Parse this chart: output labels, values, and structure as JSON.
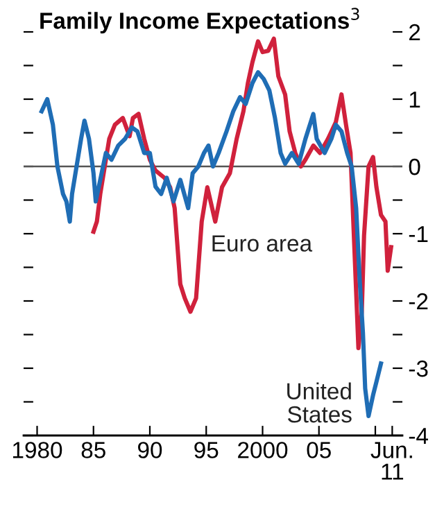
{
  "chart_data": {
    "type": "line",
    "title": "Family Income Expectations$^{3}$",
    "xlim": [
      1978.8,
      2012.4
    ],
    "ylim": [
      -4,
      2
    ],
    "xticks": [
      {
        "value": 1980,
        "label": "1980"
      },
      {
        "value": 1985,
        "label": "85"
      },
      {
        "value": 1990,
        "label": "90"
      },
      {
        "value": 1995,
        "label": "95"
      },
      {
        "value": 2000,
        "label": "2000"
      },
      {
        "value": 2005,
        "label": "05"
      },
      {
        "value": 2010,
        "label": null
      },
      {
        "value": 2011.5,
        "label": "Jun.\n11"
      }
    ],
    "yticks": [
      -4,
      {
        "value": -3.5,
        "label": null
      },
      -3,
      {
        "value": -2.5,
        "label": null
      },
      -2,
      {
        "value": -1.5,
        "label": null
      },
      -1,
      {
        "value": -0.5,
        "label": null
      },
      0,
      {
        "value": 0.5,
        "label": null
      },
      1,
      {
        "value": 1.5,
        "label": null
      },
      2
    ],
    "grid": false,
    "legend": false,
    "marker": "none",
    "line_style": "solid",
    "ref_lines": [
      {
        "axis": "y",
        "value": 0,
        "label": null,
        "color": "#555555"
      }
    ],
    "series": [
      {
        "name": "Euro area",
        "color": "#d0213c",
        "x": [
          1985.0,
          1985.3,
          1985.6,
          1986.0,
          1986.4,
          1986.9,
          1987.6,
          1988.2,
          1988.5,
          1989.0,
          1989.5,
          1990.0,
          1990.5,
          1991.3,
          1991.8,
          1992.2,
          1992.7,
          1993.1,
          1993.6,
          1994.1,
          1994.6,
          1995.1,
          1995.8,
          1996.4,
          1997.1,
          1997.7,
          1998.3,
          1998.7,
          1999.1,
          1999.6,
          2000.0,
          2000.5,
          2001.0,
          2001.4,
          2002.0,
          2002.4,
          2002.9,
          2003.4,
          2003.8,
          2004.5,
          2005.1,
          2005.8,
          2006.5,
          2007.0,
          2007.4,
          2007.8,
          2008.0,
          2008.3,
          2008.5,
          2008.8,
          2009.0,
          2009.4,
          2009.8,
          2010.1,
          2010.5,
          2010.9,
          2011.1,
          2011.4
        ],
        "values": [
          -0.97,
          -0.82,
          -0.41,
          0.0,
          0.41,
          0.62,
          0.72,
          0.45,
          0.72,
          0.78,
          0.41,
          0.1,
          -0.06,
          -0.17,
          -0.31,
          -0.62,
          -1.75,
          -1.96,
          -2.16,
          -1.96,
          -0.82,
          -0.31,
          -0.82,
          -0.31,
          -0.1,
          0.41,
          0.82,
          1.24,
          1.55,
          1.86,
          1.7,
          1.72,
          1.9,
          1.34,
          1.07,
          0.52,
          0.2,
          0.0,
          0.1,
          0.31,
          0.2,
          0.41,
          0.66,
          1.07,
          0.62,
          0.2,
          -0.62,
          -1.86,
          -2.7,
          -2.16,
          -1.03,
          0.0,
          0.14,
          -0.31,
          -0.72,
          -0.82,
          -1.55,
          -1.2
        ]
      },
      {
        "name": "United\nStates",
        "color": "#1f6db5",
        "x": [
          1980.4,
          1980.9,
          1981.4,
          1981.8,
          1982.3,
          1982.6,
          1982.9,
          1983.1,
          1983.5,
          1983.9,
          1984.2,
          1984.6,
          1985.0,
          1985.2,
          1985.6,
          1986.1,
          1986.6,
          1987.2,
          1987.8,
          1988.4,
          1988.9,
          1989.5,
          1990.0,
          1990.5,
          1991.0,
          1991.5,
          1992.1,
          1992.7,
          1993.4,
          1993.8,
          1994.3,
          1994.8,
          1995.2,
          1995.6,
          1996.1,
          1996.8,
          1997.4,
          1998.0,
          1998.5,
          1999.1,
          1999.6,
          2000.1,
          2000.6,
          2001.1,
          2001.6,
          2002.0,
          2002.6,
          2003.2,
          2003.8,
          2004.5,
          2004.8,
          2005.5,
          2006.1,
          2006.5,
          2007.0,
          2007.5,
          2007.9,
          2008.3,
          2008.6,
          2008.9,
          2009.1,
          2009.4,
          2009.8,
          2010.1,
          2010.5
        ],
        "values": [
          0.82,
          1.0,
          0.62,
          0.0,
          -0.41,
          -0.52,
          -0.82,
          -0.41,
          0.0,
          0.41,
          0.68,
          0.41,
          -0.1,
          -0.52,
          -0.2,
          0.2,
          0.1,
          0.31,
          0.41,
          0.58,
          0.52,
          0.2,
          0.2,
          -0.3,
          -0.41,
          -0.17,
          -0.52,
          -0.2,
          -0.62,
          -0.1,
          0.0,
          0.2,
          0.31,
          0.0,
          0.2,
          0.52,
          0.82,
          1.03,
          0.93,
          1.24,
          1.4,
          1.3,
          1.13,
          0.72,
          0.2,
          0.04,
          0.2,
          0.04,
          0.41,
          0.78,
          0.41,
          0.2,
          0.41,
          0.62,
          0.52,
          0.2,
          0.0,
          -0.62,
          -1.65,
          -2.47,
          -3.3,
          -3.71,
          -3.4,
          -3.2,
          -2.93
        ]
      }
    ]
  }
}
